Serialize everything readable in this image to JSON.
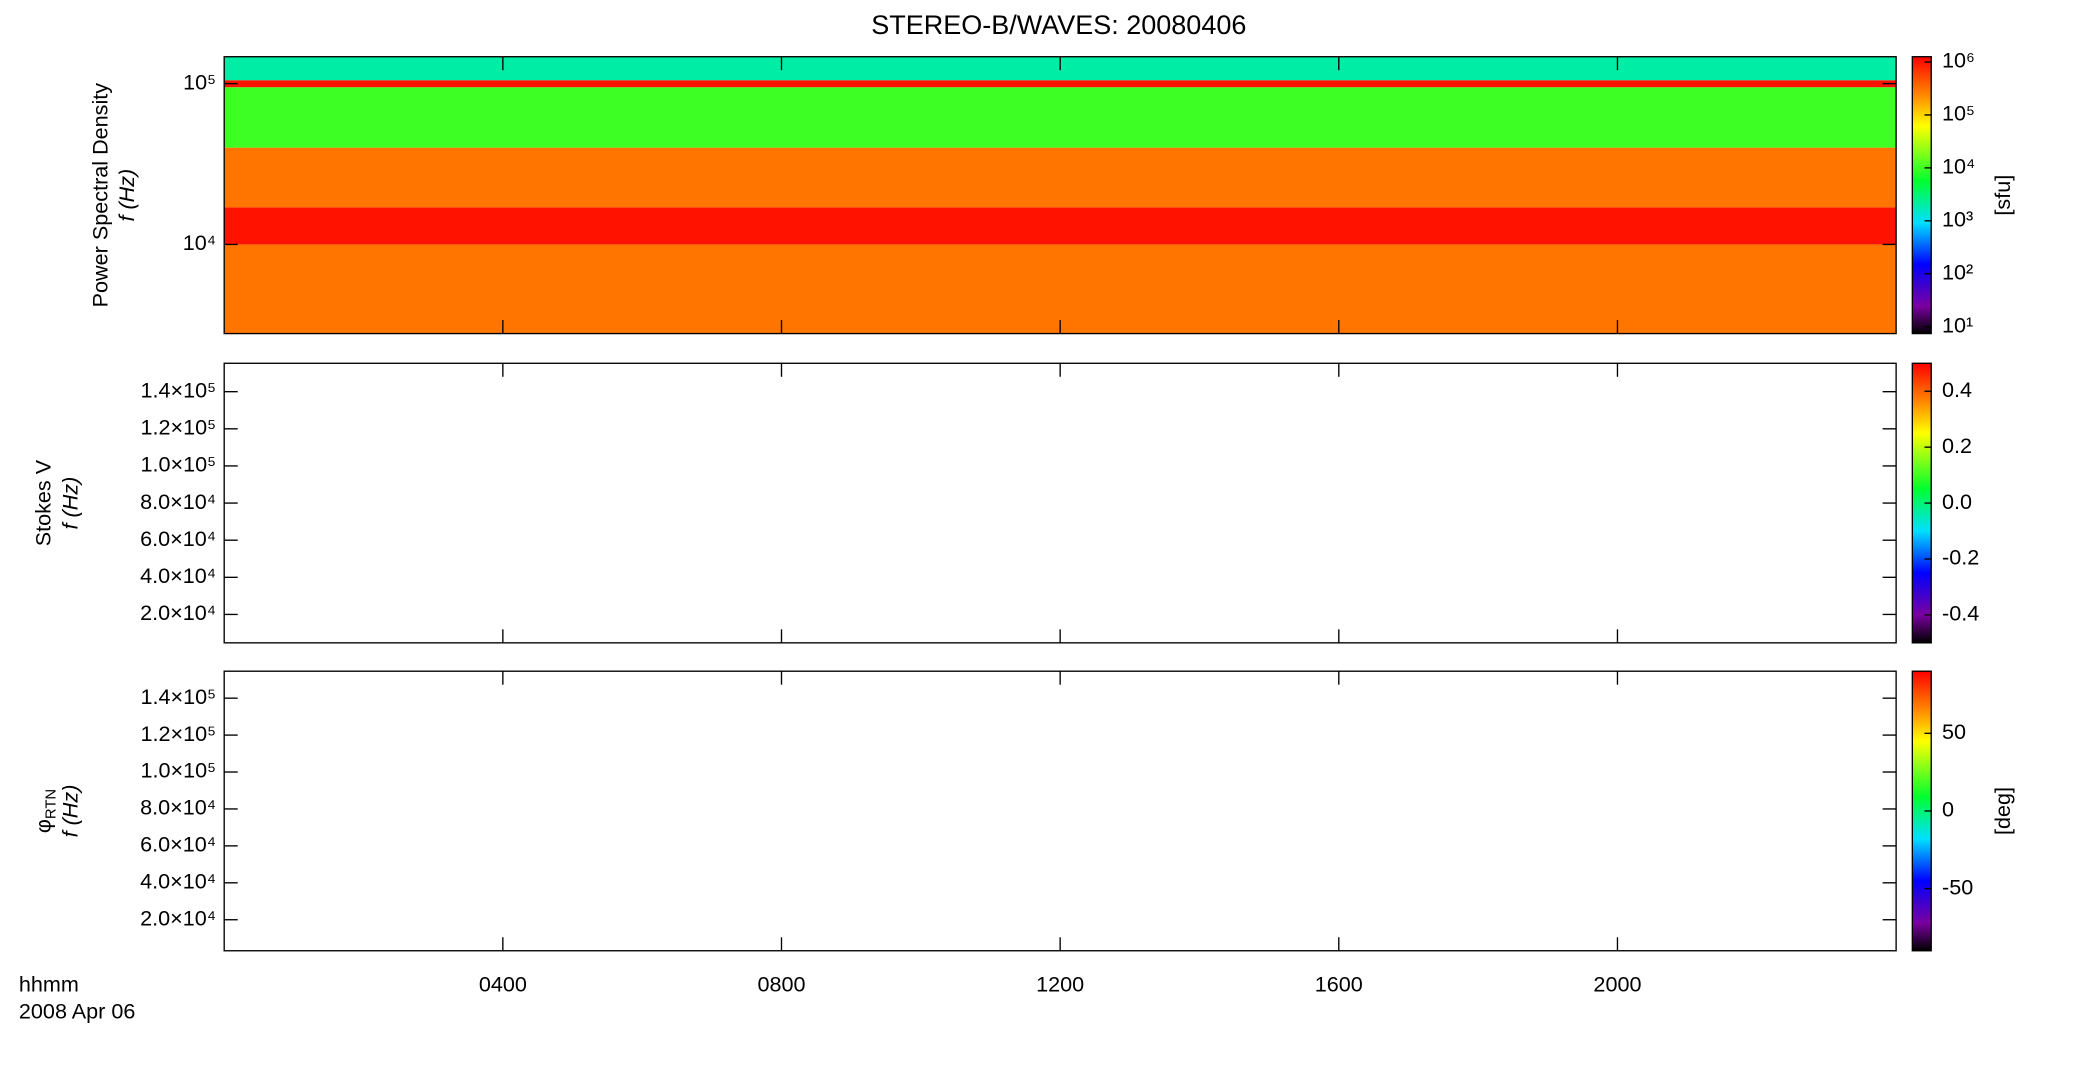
{
  "chart_data": [
    {
      "type": "heatmap",
      "title": "STEREO-B/WAVES: 20080406",
      "ylabel": "Power Spectral Density",
      "ylabel2": "f (Hz)",
      "xlim": [
        0,
        24
      ],
      "ylim": [
        2790,
        147000
      ],
      "log_y": true,
      "yticks": [
        {
          "value": 10000,
          "label": "10⁴"
        },
        {
          "value": 100000,
          "label": "10⁵"
        }
      ],
      "bins_y": [
        2790,
        10000,
        17000,
        40000,
        95000,
        105000,
        147000
      ],
      "values": [
        300000,
        1000000,
        300000,
        10000,
        1000000,
        2000
      ],
      "colorbar": {
        "label": "[sfu]",
        "log": true,
        "lim": [
          7.4,
          1260000
        ],
        "ticks": [
          {
            "value": 10,
            "label": "10¹"
          },
          {
            "value": 100,
            "label": "10²"
          },
          {
            "value": 1000,
            "label": "10³"
          },
          {
            "value": 10000,
            "label": "10⁴"
          },
          {
            "value": 100000,
            "label": "10⁵"
          },
          {
            "value": 1000000,
            "label": "10⁶"
          }
        ]
      }
    },
    {
      "type": "heatmap",
      "ylabel": "Stokes V",
      "ylabel2": "f (Hz)",
      "xlim": [
        0,
        24
      ],
      "ylim": [
        4700,
        155300
      ],
      "yticks": [
        {
          "value": 20000,
          "label": "2.0×10⁴"
        },
        {
          "value": 40000,
          "label": "4.0×10⁴"
        },
        {
          "value": 60000,
          "label": "6.0×10⁴"
        },
        {
          "value": 80000,
          "label": "8.0×10⁴"
        },
        {
          "value": 100000,
          "label": "1.0×10⁵"
        },
        {
          "value": 120000,
          "label": "1.2×10⁵"
        },
        {
          "value": 140000,
          "label": "1.4×10⁵"
        }
      ],
      "colorbar": {
        "lim": [
          -0.5,
          0.5
        ],
        "ticks": [
          -0.4,
          -0.2,
          {
            "value": 0,
            "label": "0.0"
          },
          0.2,
          0.4
        ]
      }
    },
    {
      "type": "heatmap",
      "ylabel": "φ",
      "ylabel_sub": "RTN",
      "ylabel2": "f (Hz)",
      "xlim": [
        0,
        24
      ],
      "ylim": [
        3200,
        154600
      ],
      "yticks": [
        {
          "value": 20000,
          "label": "2.0×10⁴"
        },
        {
          "value": 40000,
          "label": "4.0×10⁴"
        },
        {
          "value": 60000,
          "label": "6.0×10⁴"
        },
        {
          "value": 80000,
          "label": "8.0×10⁴"
        },
        {
          "value": 100000,
          "label": "1.0×10⁵"
        },
        {
          "value": 120000,
          "label": "1.2×10⁵"
        },
        {
          "value": 140000,
          "label": "1.4×10⁵"
        }
      ],
      "xticks": [
        {
          "value": 4,
          "label": "0400"
        },
        {
          "value": 8,
          "label": "0800"
        },
        {
          "value": 12,
          "label": "1200"
        },
        {
          "value": 16,
          "label": "1600"
        },
        {
          "value": 20,
          "label": "2000"
        }
      ],
      "xlabel": "hhmm",
      "date": "2008 Apr 06",
      "colorbar": {
        "label": "[deg]",
        "lim": [
          -90,
          90
        ],
        "ticks": [
          -50,
          0,
          50
        ]
      }
    }
  ]
}
